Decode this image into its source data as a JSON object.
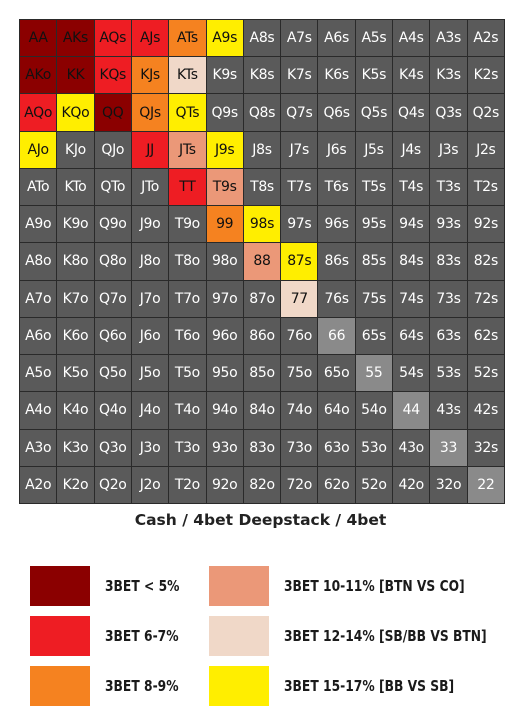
{
  "colors": {
    "dark_red": "#8b0000",
    "red": "#ee1d23",
    "orange": "#f58220",
    "salmon": "#eb9878",
    "beige": "#f0d8c8",
    "yellow": "#ffee00",
    "gray": "#5a5a5a",
    "light_gray": "#8a8a8a"
  },
  "grid": {
    "rows": [
      [
        [
          "AA",
          "dark_red"
        ],
        [
          "AKs",
          "dark_red"
        ],
        [
          "AQs",
          "red"
        ],
        [
          "AJs",
          "red"
        ],
        [
          "ATs",
          "orange"
        ],
        [
          "A9s",
          "yellow"
        ],
        [
          "A8s",
          "gray"
        ],
        [
          "A7s",
          "gray"
        ],
        [
          "A6s",
          "gray"
        ],
        [
          "A5s",
          "gray"
        ],
        [
          "A4s",
          "gray"
        ],
        [
          "A3s",
          "gray"
        ],
        [
          "A2s",
          "gray"
        ]
      ],
      [
        [
          "AKo",
          "dark_red"
        ],
        [
          "KK",
          "dark_red"
        ],
        [
          "KQs",
          "red"
        ],
        [
          "KJs",
          "orange"
        ],
        [
          "KTs",
          "beige"
        ],
        [
          "K9s",
          "gray"
        ],
        [
          "K8s",
          "gray"
        ],
        [
          "K7s",
          "gray"
        ],
        [
          "K6s",
          "gray"
        ],
        [
          "K5s",
          "gray"
        ],
        [
          "K4s",
          "gray"
        ],
        [
          "K3s",
          "gray"
        ],
        [
          "K2s",
          "gray"
        ]
      ],
      [
        [
          "AQo",
          "red"
        ],
        [
          "KQo",
          "yellow"
        ],
        [
          "QQ",
          "dark_red"
        ],
        [
          "QJs",
          "orange"
        ],
        [
          "QTs",
          "yellow"
        ],
        [
          "Q9s",
          "gray"
        ],
        [
          "Q8s",
          "gray"
        ],
        [
          "Q7s",
          "gray"
        ],
        [
          "Q6s",
          "gray"
        ],
        [
          "Q5s",
          "gray"
        ],
        [
          "Q4s",
          "gray"
        ],
        [
          "Q3s",
          "gray"
        ],
        [
          "Q2s",
          "gray"
        ]
      ],
      [
        [
          "AJo",
          "yellow"
        ],
        [
          "KJo",
          "gray"
        ],
        [
          "QJo",
          "gray"
        ],
        [
          "JJ",
          "red"
        ],
        [
          "JTs",
          "salmon"
        ],
        [
          "J9s",
          "yellow"
        ],
        [
          "J8s",
          "gray"
        ],
        [
          "J7s",
          "gray"
        ],
        [
          "J6s",
          "gray"
        ],
        [
          "J5s",
          "gray"
        ],
        [
          "J4s",
          "gray"
        ],
        [
          "J3s",
          "gray"
        ],
        [
          "J2s",
          "gray"
        ]
      ],
      [
        [
          "ATo",
          "gray"
        ],
        [
          "KTo",
          "gray"
        ],
        [
          "QTo",
          "gray"
        ],
        [
          "JTo",
          "gray"
        ],
        [
          "TT",
          "red"
        ],
        [
          "T9s",
          "salmon"
        ],
        [
          "T8s",
          "gray"
        ],
        [
          "T7s",
          "gray"
        ],
        [
          "T6s",
          "gray"
        ],
        [
          "T5s",
          "gray"
        ],
        [
          "T4s",
          "gray"
        ],
        [
          "T3s",
          "gray"
        ],
        [
          "T2s",
          "gray"
        ]
      ],
      [
        [
          "A9o",
          "gray"
        ],
        [
          "K9o",
          "gray"
        ],
        [
          "Q9o",
          "gray"
        ],
        [
          "J9o",
          "gray"
        ],
        [
          "T9o",
          "gray"
        ],
        [
          "99",
          "orange"
        ],
        [
          "98s",
          "yellow"
        ],
        [
          "97s",
          "gray"
        ],
        [
          "96s",
          "gray"
        ],
        [
          "95s",
          "gray"
        ],
        [
          "94s",
          "gray"
        ],
        [
          "93s",
          "gray"
        ],
        [
          "92s",
          "gray"
        ]
      ],
      [
        [
          "A8o",
          "gray"
        ],
        [
          "K8o",
          "gray"
        ],
        [
          "Q8o",
          "gray"
        ],
        [
          "J8o",
          "gray"
        ],
        [
          "T8o",
          "gray"
        ],
        [
          "98o",
          "gray"
        ],
        [
          "88",
          "salmon"
        ],
        [
          "87s",
          "yellow"
        ],
        [
          "86s",
          "gray"
        ],
        [
          "85s",
          "gray"
        ],
        [
          "84s",
          "gray"
        ],
        [
          "83s",
          "gray"
        ],
        [
          "82s",
          "gray"
        ]
      ],
      [
        [
          "A7o",
          "gray"
        ],
        [
          "K7o",
          "gray"
        ],
        [
          "Q7o",
          "gray"
        ],
        [
          "J7o",
          "gray"
        ],
        [
          "T7o",
          "gray"
        ],
        [
          "97o",
          "gray"
        ],
        [
          "87o",
          "gray"
        ],
        [
          "77",
          "beige"
        ],
        [
          "76s",
          "gray"
        ],
        [
          "75s",
          "gray"
        ],
        [
          "74s",
          "gray"
        ],
        [
          "73s",
          "gray"
        ],
        [
          "72s",
          "gray"
        ]
      ],
      [
        [
          "A6o",
          "gray"
        ],
        [
          "K6o",
          "gray"
        ],
        [
          "Q6o",
          "gray"
        ],
        [
          "J6o",
          "gray"
        ],
        [
          "T6o",
          "gray"
        ],
        [
          "96o",
          "gray"
        ],
        [
          "86o",
          "gray"
        ],
        [
          "76o",
          "gray"
        ],
        [
          "66",
          "light_gray"
        ],
        [
          "65s",
          "gray"
        ],
        [
          "64s",
          "gray"
        ],
        [
          "63s",
          "gray"
        ],
        [
          "62s",
          "gray"
        ]
      ],
      [
        [
          "A5o",
          "gray"
        ],
        [
          "K5o",
          "gray"
        ],
        [
          "Q5o",
          "gray"
        ],
        [
          "J5o",
          "gray"
        ],
        [
          "T5o",
          "gray"
        ],
        [
          "95o",
          "gray"
        ],
        [
          "85o",
          "gray"
        ],
        [
          "75o",
          "gray"
        ],
        [
          "65o",
          "gray"
        ],
        [
          "55",
          "light_gray"
        ],
        [
          "54s",
          "gray"
        ],
        [
          "53s",
          "gray"
        ],
        [
          "52s",
          "gray"
        ]
      ],
      [
        [
          "A4o",
          "gray"
        ],
        [
          "K4o",
          "gray"
        ],
        [
          "Q4o",
          "gray"
        ],
        [
          "J4o",
          "gray"
        ],
        [
          "T4o",
          "gray"
        ],
        [
          "94o",
          "gray"
        ],
        [
          "84o",
          "gray"
        ],
        [
          "74o",
          "gray"
        ],
        [
          "64o",
          "gray"
        ],
        [
          "54o",
          "gray"
        ],
        [
          "44",
          "light_gray"
        ],
        [
          "43s",
          "gray"
        ],
        [
          "42s",
          "gray"
        ]
      ],
      [
        [
          "A3o",
          "gray"
        ],
        [
          "K3o",
          "gray"
        ],
        [
          "Q3o",
          "gray"
        ],
        [
          "J3o",
          "gray"
        ],
        [
          "T3o",
          "gray"
        ],
        [
          "93o",
          "gray"
        ],
        [
          "83o",
          "gray"
        ],
        [
          "73o",
          "gray"
        ],
        [
          "63o",
          "gray"
        ],
        [
          "53o",
          "gray"
        ],
        [
          "43o",
          "gray"
        ],
        [
          "33",
          "light_gray"
        ],
        [
          "32s",
          "gray"
        ]
      ],
      [
        [
          "A2o",
          "gray"
        ],
        [
          "K2o",
          "gray"
        ],
        [
          "Q2o",
          "gray"
        ],
        [
          "J2o",
          "gray"
        ],
        [
          "T2o",
          "gray"
        ],
        [
          "92o",
          "gray"
        ],
        [
          "82o",
          "gray"
        ],
        [
          "72o",
          "gray"
        ],
        [
          "62o",
          "gray"
        ],
        [
          "52o",
          "gray"
        ],
        [
          "42o",
          "gray"
        ],
        [
          "32o",
          "gray"
        ],
        [
          "22",
          "light_gray"
        ]
      ]
    ]
  },
  "caption": "Cash / 4bet Deepstack / 4bet",
  "legend": [
    {
      "label": "3BET < 5%",
      "color": "dark_red"
    },
    {
      "label": "3BET 6-7%",
      "color": "red"
    },
    {
      "label": "3BET 8-9%",
      "color": "orange"
    },
    {
      "label": "3BET 10-11% [BTN VS CO]",
      "color": "salmon"
    },
    {
      "label": "3BET 12-14% [SB/BB VS BTN]",
      "color": "beige"
    },
    {
      "label": "3BET 15-17% [BB VS SB]",
      "color": "yellow"
    }
  ]
}
